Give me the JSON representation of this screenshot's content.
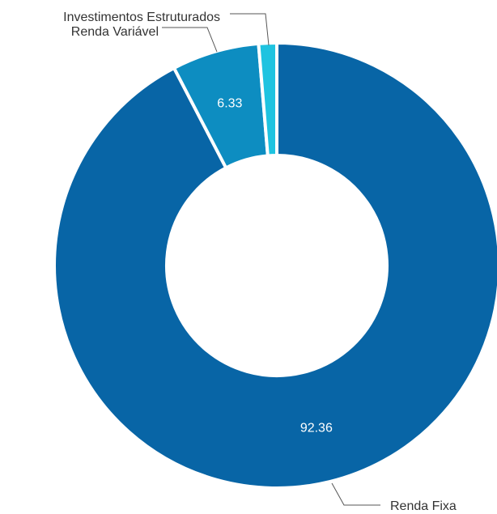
{
  "chart_data": {
    "type": "pie",
    "variant": "donut",
    "categories": [
      "Renda Fixa",
      "Renda Variável",
      "Investimentos Estruturados"
    ],
    "values": [
      92.36,
      6.33,
      1.31
    ],
    "value_labels": [
      "92.36",
      "6.33",
      ""
    ],
    "colors": [
      "#0865a6",
      "#0d8dc1",
      "#1ec3e0"
    ],
    "legend": "none",
    "labels_placement": "callouts"
  }
}
